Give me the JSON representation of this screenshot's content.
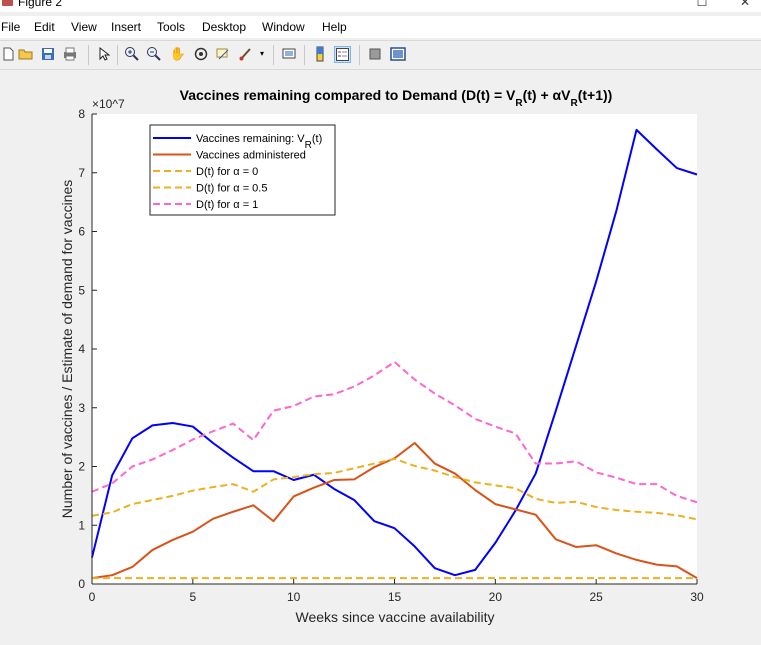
{
  "window": {
    "title": "Figure 2"
  },
  "menu": [
    "File",
    "Edit",
    "View",
    "Insert",
    "Tools",
    "Desktop",
    "Window",
    "Help"
  ],
  "toolbar": {
    "tools": [
      "new-figure-icon",
      "open-icon",
      "save-icon",
      "print-icon",
      "pointer-icon",
      "zoom-in-icon",
      "zoom-out-icon",
      "pan-icon",
      "rotate-3d-icon",
      "data-cursor-icon",
      "brush-icon",
      "brush-dropdown-icon",
      "link-plot-icon",
      "colorbar-icon",
      "legend-icon",
      "hide-plot-tools-icon",
      "show-plot-tools-icon"
    ]
  },
  "chart_data": {
    "type": "line",
    "title": "Vaccines remaining compared to Demand (D(t) = V_R(t) + αV_R(t+1))",
    "xlabel": "Weeks since vaccine availability",
    "ylabel": "Number of vaccines  / Estimate of demand for vaccines",
    "y_exponent_label": "×10^7",
    "xlim": [
      0,
      30
    ],
    "ylim": [
      0,
      80000000
    ],
    "xticks": [
      "0",
      "5",
      "10",
      "15",
      "20",
      "25",
      "30"
    ],
    "yticks": [
      "0",
      "1",
      "2",
      "3",
      "4",
      "5",
      "6",
      "7",
      "8"
    ],
    "grid": false,
    "legend_position": "top-left",
    "x": [
      0,
      1,
      2,
      3,
      4,
      5,
      6,
      7,
      8,
      9,
      10,
      11,
      12,
      13,
      14,
      15,
      16,
      17,
      18,
      19,
      20,
      21,
      22,
      23,
      24,
      25,
      26,
      27,
      28,
      29,
      30
    ],
    "series": [
      {
        "name": "Vaccines remaining: V_R(t)",
        "color": "#0000ff",
        "dash": "solid",
        "values": [
          4500000,
          18500000,
          24800000,
          27000000,
          27400000,
          26800000,
          24000000,
          21500000,
          19200000,
          19200000,
          17700000,
          18600000,
          16200000,
          14300000,
          10700000,
          9500000,
          6400000,
          2700000,
          1500000,
          2400000,
          7000000,
          12500000,
          18800000,
          29500000,
          40500000,
          51500000,
          63500000,
          77300000,
          74000000,
          70800000,
          69700000
        ]
      },
      {
        "name": "Vaccines administered",
        "color": "#d95319",
        "dash": "solid",
        "values": [
          1000000,
          1500000,
          2900000,
          5800000,
          7500000,
          8900000,
          11100000,
          12300000,
          13400000,
          10700000,
          14900000,
          16400000,
          17700000,
          17800000,
          19900000,
          21400000,
          24000000,
          20500000,
          18800000,
          16000000,
          13600000,
          12700000,
          11800000,
          7600000,
          6300000,
          6600000,
          5200000,
          4100000,
          3300000,
          3000000,
          1000000
        ]
      },
      {
        "name": "D(t) for α = 0",
        "color": "#edb120",
        "dash": "dashed",
        "values": [
          1000000,
          1000000,
          1000000,
          1000000,
          1000000,
          1000000,
          1000000,
          1000000,
          1000000,
          1000000,
          1000000,
          1000000,
          1000000,
          1000000,
          1000000,
          1000000,
          1000000,
          1000000,
          1000000,
          1000000,
          1000000,
          1000000,
          1000000,
          1000000,
          1000000,
          1000000,
          1000000,
          1000000,
          1000000,
          1000000,
          1000000
        ]
      },
      {
        "name": "D(t) for α = 0.5",
        "color": "#edb120",
        "dash": "dashed",
        "values": [
          11600000,
          12200000,
          13600000,
          14300000,
          15000000,
          15900000,
          16500000,
          17000000,
          15700000,
          17800000,
          18200000,
          18700000,
          18900000,
          19700000,
          20500000,
          21300000,
          20100000,
          19300000,
          18200000,
          17300000,
          16800000,
          16300000,
          14500000,
          13800000,
          14000000,
          13100000,
          12600000,
          12300000,
          12100000,
          11700000,
          11000000
        ]
      },
      {
        "name": "D(t) for α = 1",
        "color": "#ff66cc",
        "dash": "dashed",
        "values": [
          15700000,
          17100000,
          20000000,
          21200000,
          22800000,
          24600000,
          26000000,
          27300000,
          24500000,
          29500000,
          30300000,
          31900000,
          32300000,
          33600000,
          35500000,
          37800000,
          34800000,
          32400000,
          30400000,
          28100000,
          26800000,
          25600000,
          20500000,
          20500000,
          20900000,
          19000000,
          18100000,
          17000000,
          17000000,
          15000000,
          13900000
        ]
      }
    ]
  }
}
